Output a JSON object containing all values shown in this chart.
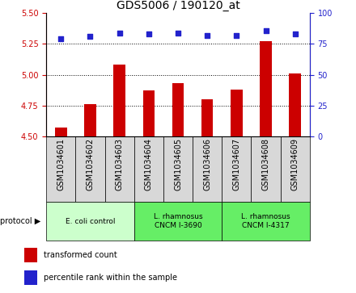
{
  "title": "GDS5006 / 190120_at",
  "samples": [
    "GSM1034601",
    "GSM1034602",
    "GSM1034603",
    "GSM1034604",
    "GSM1034605",
    "GSM1034606",
    "GSM1034607",
    "GSM1034608",
    "GSM1034609"
  ],
  "bar_values": [
    4.57,
    4.76,
    5.08,
    4.87,
    4.93,
    4.8,
    4.88,
    5.27,
    5.01
  ],
  "scatter_values": [
    79,
    81,
    84,
    83,
    84,
    82,
    82,
    86,
    83
  ],
  "ylim_left": [
    4.5,
    5.5
  ],
  "ylim_right": [
    0,
    100
  ],
  "yticks_left": [
    4.5,
    4.75,
    5.0,
    5.25,
    5.5
  ],
  "yticks_right": [
    0,
    25,
    50,
    75,
    100
  ],
  "bar_color": "#cc0000",
  "scatter_color": "#2222cc",
  "grid_lines": [
    4.75,
    5.0,
    5.25
  ],
  "protocol_groups": [
    {
      "label": "E. coli control",
      "indices": [
        0,
        1,
        2
      ],
      "color": "#ccffcc"
    },
    {
      "label": "L. rhamnosus\nCNCM I-3690",
      "indices": [
        3,
        4,
        5
      ],
      "color": "#66ee66"
    },
    {
      "label": "L. rhamnosus\nCNCM I-4317",
      "indices": [
        6,
        7,
        8
      ],
      "color": "#66ee66"
    }
  ],
  "legend_items": [
    {
      "label": "transformed count",
      "color": "#cc0000"
    },
    {
      "label": "percentile rank within the sample",
      "color": "#2222cc"
    }
  ],
  "left_tick_color": "#cc0000",
  "right_tick_color": "#2222cc",
  "tick_label_size": 7,
  "title_fontsize": 10,
  "sample_box_color": "#d8d8d8",
  "bar_width": 0.4
}
